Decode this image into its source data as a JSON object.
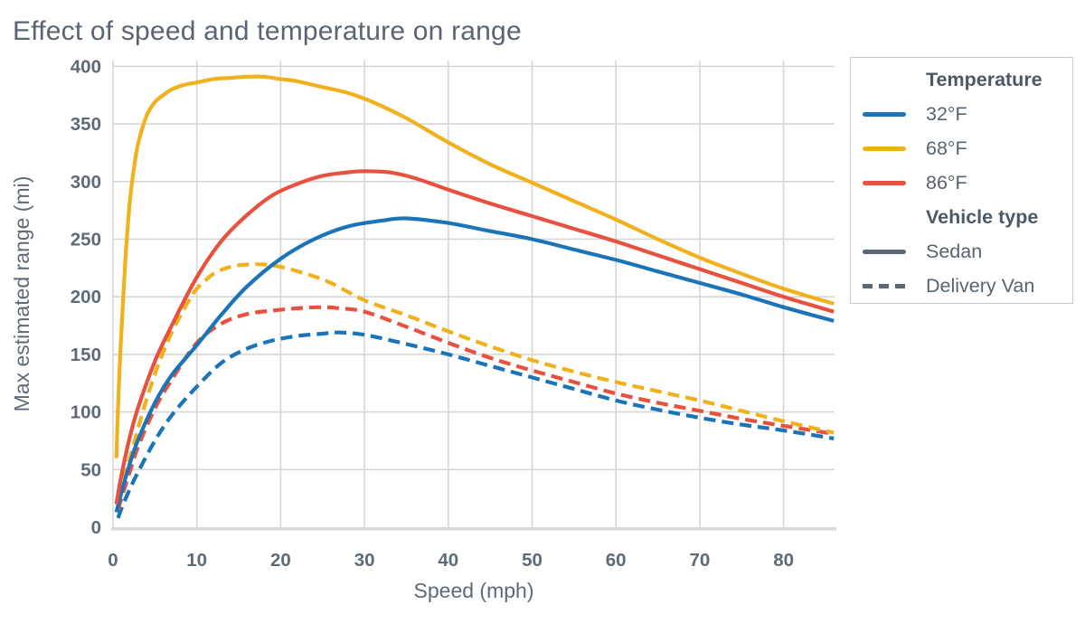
{
  "title": "Effect of speed and temperature on range",
  "colors": {
    "blue_32f": "#1b74b8",
    "yellow_68f": "#f0b11c",
    "red_86f": "#e8513f",
    "legend_gray": "#5b6775",
    "grid": "#d5d6d8",
    "baseline": "#d9d9db",
    "text_slate": "#5d6b79"
  },
  "chart_data": {
    "type": "line",
    "title": "Effect of speed and temperature on range",
    "xlabel": "Speed (mph)",
    "ylabel": "Max estimated range (mi)",
    "xlim": [
      0,
      86.3
    ],
    "ylim": [
      0,
      405
    ],
    "x_ticks": [
      0,
      10,
      20,
      30,
      40,
      50,
      60,
      70,
      80
    ],
    "y_ticks": [
      0,
      50,
      100,
      150,
      200,
      250,
      300,
      350,
      400
    ],
    "grid": true,
    "legend_position": "outside upper right",
    "legend": {
      "sections": [
        {
          "title": "Temperature",
          "items": [
            {
              "label": "32°F",
              "color": "#1b74b8",
              "dash": false
            },
            {
              "label": "68°F",
              "color": "#f0b11c",
              "dash": false
            },
            {
              "label": "86°F",
              "color": "#e8513f",
              "dash": false
            }
          ]
        },
        {
          "title": "Vehicle type",
          "items": [
            {
              "label": "Sedan",
              "color": "#5b6775",
              "dash": false
            },
            {
              "label": "Delivery Van",
              "color": "#5b6775",
              "dash": true
            }
          ]
        }
      ]
    },
    "series": [
      {
        "name": "Delivery Van 32°F",
        "temperature": "32°F",
        "vehicle": "Delivery Van",
        "style": "dashed",
        "color": "#1b74b8",
        "points": [
          [
            0.6,
            8
          ],
          [
            1,
            16
          ],
          [
            2,
            33
          ],
          [
            3,
            48
          ],
          [
            5,
            75
          ],
          [
            7,
            97
          ],
          [
            10,
            122
          ],
          [
            13,
            143
          ],
          [
            16,
            155
          ],
          [
            19,
            162
          ],
          [
            22,
            166
          ],
          [
            25,
            168
          ],
          [
            27,
            169
          ],
          [
            30,
            167
          ],
          [
            35,
            159
          ],
          [
            40,
            150
          ],
          [
            45,
            140
          ],
          [
            50,
            130
          ],
          [
            55,
            120
          ],
          [
            60,
            110
          ],
          [
            65,
            102
          ],
          [
            70,
            95
          ],
          [
            75,
            89
          ],
          [
            80,
            84
          ],
          [
            86,
            77
          ]
        ]
      },
      {
        "name": "Delivery Van 86°F",
        "temperature": "86°F",
        "vehicle": "Delivery Van",
        "style": "dashed",
        "color": "#e8513f",
        "points": [
          [
            0.6,
            15
          ],
          [
            1,
            25
          ],
          [
            2,
            48
          ],
          [
            3,
            70
          ],
          [
            5,
            103
          ],
          [
            7,
            128
          ],
          [
            10,
            160
          ],
          [
            13,
            177
          ],
          [
            16,
            185
          ],
          [
            19,
            188
          ],
          [
            22,
            190
          ],
          [
            25,
            191
          ],
          [
            27,
            190
          ],
          [
            30,
            187
          ],
          [
            35,
            174
          ],
          [
            40,
            160
          ],
          [
            45,
            147
          ],
          [
            50,
            136
          ],
          [
            55,
            126
          ],
          [
            60,
            116
          ],
          [
            65,
            108
          ],
          [
            70,
            101
          ],
          [
            75,
            94
          ],
          [
            80,
            88
          ],
          [
            86,
            81
          ]
        ]
      },
      {
        "name": "Delivery Van 68°F",
        "temperature": "68°F",
        "vehicle": "Delivery Van",
        "style": "dashed",
        "color": "#f0b11c",
        "points": [
          [
            1,
            42
          ],
          [
            2,
            60
          ],
          [
            3,
            86
          ],
          [
            4,
            111
          ],
          [
            5,
            133
          ],
          [
            6,
            152
          ],
          [
            7,
            169
          ],
          [
            8,
            183
          ],
          [
            9,
            196
          ],
          [
            10,
            207
          ],
          [
            12,
            220
          ],
          [
            14,
            226
          ],
          [
            16,
            228
          ],
          [
            18,
            228
          ],
          [
            20,
            226
          ],
          [
            23,
            220
          ],
          [
            26,
            212
          ],
          [
            30,
            197
          ],
          [
            35,
            184
          ],
          [
            40,
            170
          ],
          [
            45,
            157
          ],
          [
            50,
            145
          ],
          [
            55,
            135
          ],
          [
            60,
            126
          ],
          [
            65,
            118
          ],
          [
            70,
            110
          ],
          [
            75,
            101
          ],
          [
            80,
            92
          ],
          [
            86,
            82
          ]
        ]
      },
      {
        "name": "Sedan 32°F",
        "temperature": "32°F",
        "vehicle": "Sedan",
        "style": "solid",
        "color": "#1b74b8",
        "points": [
          [
            0.4,
            13
          ],
          [
            1,
            30
          ],
          [
            2,
            55
          ],
          [
            3,
            76
          ],
          [
            5,
            108
          ],
          [
            7,
            132
          ],
          [
            10,
            158
          ],
          [
            13,
            185
          ],
          [
            16,
            209
          ],
          [
            20,
            233
          ],
          [
            24,
            250
          ],
          [
            28,
            261
          ],
          [
            32,
            266
          ],
          [
            35,
            268
          ],
          [
            40,
            264
          ],
          [
            45,
            257
          ],
          [
            50,
            250
          ],
          [
            55,
            241
          ],
          [
            60,
            232
          ],
          [
            65,
            222
          ],
          [
            70,
            212
          ],
          [
            75,
            202
          ],
          [
            80,
            191
          ],
          [
            86,
            179
          ]
        ]
      },
      {
        "name": "Sedan 86°F",
        "temperature": "86°F",
        "vehicle": "Sedan",
        "style": "solid",
        "color": "#e8513f",
        "points": [
          [
            0.4,
            20
          ],
          [
            1,
            45
          ],
          [
            2,
            78
          ],
          [
            3,
            104
          ],
          [
            5,
            144
          ],
          [
            7,
            175
          ],
          [
            10,
            217
          ],
          [
            13,
            249
          ],
          [
            16,
            271
          ],
          [
            19,
            288
          ],
          [
            22,
            298
          ],
          [
            25,
            305
          ],
          [
            28,
            308
          ],
          [
            30,
            309
          ],
          [
            33,
            308
          ],
          [
            36,
            303
          ],
          [
            40,
            293
          ],
          [
            45,
            281
          ],
          [
            50,
            270
          ],
          [
            55,
            259
          ],
          [
            60,
            248
          ],
          [
            65,
            236
          ],
          [
            70,
            224
          ],
          [
            75,
            212
          ],
          [
            80,
            200
          ],
          [
            86,
            187
          ]
        ]
      },
      {
        "name": "Sedan 68°F",
        "temperature": "68°F",
        "vehicle": "Sedan",
        "style": "solid",
        "color": "#f0b11c",
        "points": [
          [
            0.4,
            60
          ],
          [
            0.6,
            105
          ],
          [
            0.8,
            140
          ],
          [
            1,
            170
          ],
          [
            1.5,
            235
          ],
          [
            2,
            282
          ],
          [
            2.5,
            312
          ],
          [
            3,
            333
          ],
          [
            4,
            357
          ],
          [
            5,
            369
          ],
          [
            6,
            375
          ],
          [
            7,
            380
          ],
          [
            8.5,
            384
          ],
          [
            10,
            386
          ],
          [
            12,
            389
          ],
          [
            14,
            390
          ],
          [
            16,
            391
          ],
          [
            18,
            391
          ],
          [
            20,
            389
          ],
          [
            22,
            387
          ],
          [
            25,
            382
          ],
          [
            28,
            377
          ],
          [
            31,
            369
          ],
          [
            35,
            355
          ],
          [
            40,
            334
          ],
          [
            45,
            315
          ],
          [
            50,
            299
          ],
          [
            55,
            283
          ],
          [
            60,
            267
          ],
          [
            65,
            250
          ],
          [
            70,
            234
          ],
          [
            75,
            220
          ],
          [
            80,
            207
          ],
          [
            86,
            194
          ]
        ]
      }
    ]
  }
}
